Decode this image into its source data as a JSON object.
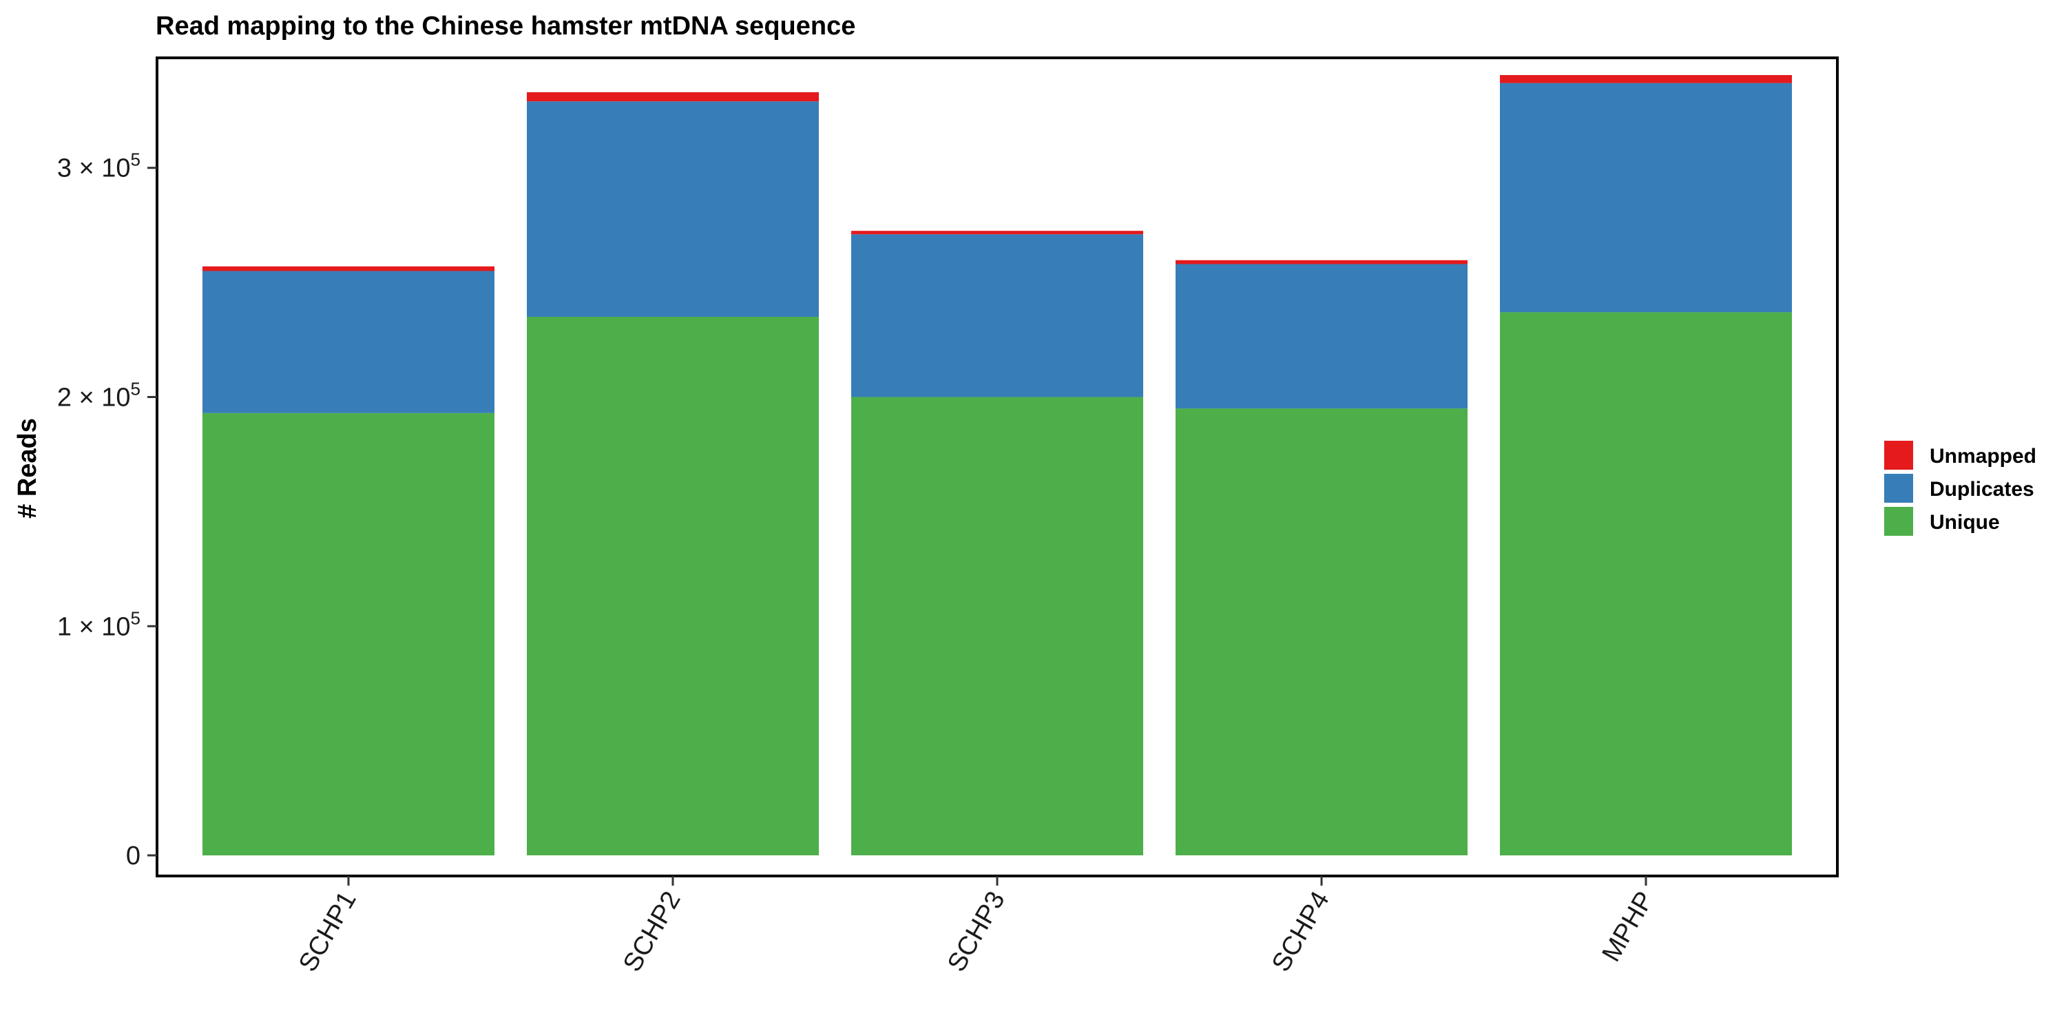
{
  "chart_data": {
    "type": "bar",
    "stacked": true,
    "title": "Read mapping to the Chinese hamster mtDNA sequence",
    "xlabel": "",
    "ylabel": "# Reads",
    "categories": [
      "SCHP1",
      "SCHP2",
      "SCHP3",
      "SCHP4",
      "MPHP"
    ],
    "series": [
      {
        "name": "Unique",
        "color": "#4DAF4A",
        "values": [
          193000,
          235000,
          200000,
          195000,
          237000
        ]
      },
      {
        "name": "Duplicates",
        "color": "#377EB8",
        "values": [
          62000,
          94000,
          71000,
          63000,
          100000
        ]
      },
      {
        "name": "Unmapped",
        "color": "#E41A1C",
        "values": [
          2000,
          4000,
          1500,
          1700,
          3500
        ]
      }
    ],
    "ylim": [
      -9000,
      348000
    ],
    "yticks": [
      {
        "value": 0,
        "base": "0",
        "exp": ""
      },
      {
        "value": 100000,
        "base": "1 × 10",
        "exp": "5"
      },
      {
        "value": 200000,
        "base": "2 × 10",
        "exp": "5"
      },
      {
        "value": 300000,
        "base": "3 × 10",
        "exp": "5"
      }
    ],
    "legend": {
      "position": "right",
      "order": [
        "Unmapped",
        "Duplicates",
        "Unique"
      ]
    },
    "grid": false,
    "x_tick_rotation": -60
  }
}
